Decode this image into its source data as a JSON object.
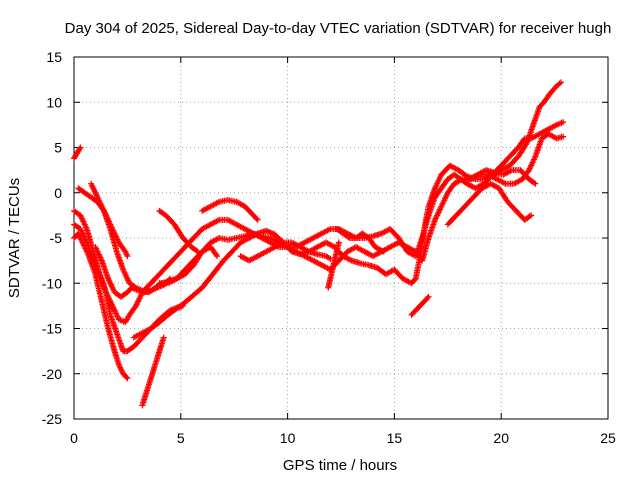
{
  "chart_data": {
    "type": "scatter",
    "title": "Day 304 of 2025, Sidereal Day-to-day VTEC variation (SDTVAR) for receiver hugh",
    "xlabel": "GPS time / hours",
    "ylabel": "SDTVAR / TECUs",
    "xlim": [
      0,
      25
    ],
    "ylim": [
      -25,
      15
    ],
    "xticks": [
      0,
      5,
      10,
      15,
      20,
      25
    ],
    "yticks": [
      -25,
      -20,
      -15,
      -10,
      -5,
      0,
      5,
      10,
      15
    ],
    "xtick_labels": [
      "0",
      "5",
      "10",
      "15",
      "20",
      "25"
    ],
    "ytick_labels": [
      "-25",
      "-20",
      "-15",
      "-10",
      "-5",
      "0",
      "5",
      "10",
      "15"
    ],
    "grid": true,
    "marker": "+",
    "color": "#ff0000",
    "series": [
      {
        "x": [
          0.0,
          0.1,
          0.2,
          0.3
        ],
        "y": [
          3.8,
          4.2,
          4.6,
          5.0
        ]
      },
      {
        "x": [
          0.0,
          0.3,
          0.6,
          0.9,
          1.2,
          1.5,
          1.7,
          2.0,
          2.3,
          2.5,
          2.8,
          3.2,
          3.6,
          4.0,
          4.5,
          5.0,
          5.5,
          6.0,
          6.5,
          7.0,
          7.4,
          7.8,
          8.2,
          8.6,
          9.0,
          9.4,
          9.8,
          10.2,
          10.6,
          11.0,
          11.4,
          11.8,
          12.2,
          12.6,
          13.0,
          13.4,
          13.8,
          14.2,
          14.6,
          15.0,
          15.4,
          15.8,
          16.0,
          16.2,
          16.4,
          16.6,
          16.9,
          17.2,
          17.6,
          18.0,
          18.4,
          18.8,
          19.2,
          19.6,
          20.0,
          20.4,
          20.8,
          21.2,
          21.5,
          21.8,
          22.0,
          22.3,
          22.6,
          22.8
        ],
        "y": [
          -3.5,
          -4.0,
          -5.5,
          -7.5,
          -9.0,
          -11.0,
          -13.5,
          -15.5,
          -17.5,
          -17.5,
          -17.0,
          -16.0,
          -15.0,
          -14.0,
          -13.0,
          -12.5,
          -11.5,
          -10.5,
          -9.0,
          -7.5,
          -6.5,
          -5.5,
          -5.0,
          -4.5,
          -4.2,
          -4.6,
          -5.5,
          -6.5,
          -6.8,
          -6.5,
          -6.0,
          -5.5,
          -6.0,
          -7.0,
          -7.5,
          -7.8,
          -8.0,
          -8.3,
          -9.0,
          -8.5,
          -9.5,
          -10.0,
          -9.5,
          -7.0,
          -4.0,
          -1.5,
          0.5,
          2.0,
          3.0,
          2.5,
          1.8,
          1.5,
          1.5,
          2.0,
          2.5,
          3.0,
          4.0,
          5.5,
          7.5,
          9.5,
          10.0,
          11.0,
          11.8,
          12.2
        ]
      },
      {
        "x": [
          0.0,
          0.2,
          0.4,
          0.7,
          1.0,
          1.3,
          1.6,
          1.9,
          2.1,
          2.3,
          2.5
        ],
        "y": [
          -5.0,
          -4.5,
          -5.5,
          -7.0,
          -9.0,
          -12.0,
          -15.0,
          -17.5,
          -19.0,
          -20.0,
          -20.5
        ]
      },
      {
        "x": [
          0.0,
          0.3,
          0.6,
          0.9,
          1.2,
          1.5,
          1.8,
          2.1,
          2.4,
          2.6,
          2.9,
          3.2,
          3.6,
          4.0,
          4.4,
          4.8,
          5.2,
          5.6,
          6.0,
          6.4,
          6.8,
          7.2,
          7.6,
          8.0,
          8.4,
          8.8,
          9.2,
          9.6,
          10.0,
          10.4,
          10.8,
          11.2,
          11.6,
          12.0,
          12.4,
          12.8,
          13.2,
          13.6,
          14.0,
          14.4,
          14.8,
          15.2,
          15.6,
          16.0,
          16.3,
          16.6,
          16.9,
          17.2,
          17.5,
          17.8,
          18.1,
          18.4,
          18.8,
          19.2,
          19.6,
          20.0,
          20.4,
          20.8,
          21.1,
          21.4,
          21.8,
          22.2,
          22.6,
          22.9
        ],
        "y": [
          -2.0,
          -2.5,
          -4.0,
          -6.5,
          -9.0,
          -11.0,
          -12.5,
          -14.0,
          -14.3,
          -13.5,
          -12.5,
          -11.0,
          -10.0,
          -9.0,
          -8.0,
          -7.0,
          -6.0,
          -5.0,
          -4.0,
          -3.5,
          -3.0,
          -3.0,
          -3.5,
          -4.0,
          -4.5,
          -4.8,
          -5.0,
          -5.5,
          -6.0,
          -6.0,
          -5.5,
          -5.0,
          -4.5,
          -4.0,
          -4.0,
          -4.5,
          -5.0,
          -5.0,
          -4.8,
          -4.5,
          -4.0,
          -5.0,
          -6.5,
          -7.0,
          -5.0,
          -2.5,
          -0.5,
          0.5,
          1.5,
          2.0,
          1.5,
          1.0,
          0.5,
          1.0,
          2.0,
          3.0,
          4.0,
          5.0,
          6.0,
          6.0,
          6.5,
          7.0,
          7.5,
          7.8
        ]
      },
      {
        "x": [
          0.2,
          0.5,
          0.8,
          1.1,
          1.4,
          1.7,
          2.0,
          2.3,
          2.6,
          2.9,
          3.2,
          3.5,
          3.8,
          4.1,
          4.4,
          4.8,
          5.2,
          5.6,
          6.0,
          6.4,
          6.8,
          7.2,
          7.6,
          8.0,
          8.4,
          8.8,
          9.2,
          9.6,
          10.0,
          10.4,
          10.8,
          11.2,
          11.6,
          12.0,
          12.4,
          12.8,
          13.2,
          13.6,
          14.0,
          14.4,
          14.8,
          15.2,
          15.6,
          16.0,
          16.3,
          16.6,
          16.9,
          17.2,
          17.5,
          17.8,
          18.2,
          18.6,
          19.0,
          19.4,
          19.8,
          20.2,
          20.6,
          21.0,
          21.3,
          21.6,
          21.9,
          22.2,
          22.6,
          22.9
        ],
        "y": [
          0.5,
          0.0,
          -0.5,
          -1.0,
          -2.0,
          -4.0,
          -6.5,
          -8.5,
          -10.0,
          -10.5,
          -10.8,
          -11.0,
          -10.5,
          -10.0,
          -9.8,
          -9.5,
          -8.5,
          -7.5,
          -6.5,
          -5.5,
          -5.0,
          -5.2,
          -5.0,
          -4.8,
          -4.5,
          -5.0,
          -5.5,
          -6.0,
          -6.0,
          -6.5,
          -7.0,
          -7.5,
          -8.0,
          -8.5,
          -7.5,
          -6.5,
          -6.0,
          -6.5,
          -7.0,
          -6.5,
          -6.0,
          -5.5,
          -6.0,
          -6.5,
          -7.5,
          -5.0,
          -3.0,
          -1.5,
          0.0,
          1.0,
          1.5,
          1.5,
          2.0,
          2.0,
          1.5,
          1.0,
          1.0,
          1.5,
          2.5,
          4.0,
          6.0,
          6.5,
          6.0,
          6.2
        ]
      },
      {
        "x": [
          1.0,
          1.3,
          1.6,
          1.9,
          2.2,
          2.5,
          2.7,
          3.0,
          3.3,
          3.6,
          3.9,
          4.2,
          4.5
        ],
        "y": [
          -6.0,
          -7.5,
          -9.5,
          -11.0,
          -11.5,
          -11.0,
          -10.5,
          -10.8,
          -11.0,
          -10.8,
          -10.5,
          -10.2,
          -9.5
        ]
      },
      {
        "x": [
          0.8,
          1.0,
          1.2,
          1.5,
          1.8,
          2.1,
          2.4,
          2.5
        ],
        "y": [
          1.0,
          0.0,
          -1.0,
          -2.5,
          -4.0,
          -5.5,
          -6.5,
          -7.0
        ]
      },
      {
        "x": [
          3.2,
          3.4,
          3.6,
          3.8,
          4.0,
          4.2
        ],
        "y": [
          -23.5,
          -22.0,
          -20.5,
          -19.0,
          -17.5,
          -16.0
        ]
      },
      {
        "x": [
          2.8,
          3.2,
          3.6,
          4.0,
          4.4,
          4.8,
          5.1
        ],
        "y": [
          -16.0,
          -15.5,
          -15.0,
          -14.3,
          -13.5,
          -12.8,
          -12.5
        ]
      },
      {
        "x": [
          4.0,
          4.4,
          4.8,
          5.2,
          5.6,
          6.0,
          6.4,
          6.7
        ],
        "y": [
          -10.0,
          -10.0,
          -9.5,
          -9.0,
          -8.0,
          -6.5,
          -6.0,
          -7.0
        ]
      },
      {
        "x": [
          4.0,
          4.3,
          4.7,
          5.1,
          5.5,
          5.8
        ],
        "y": [
          -2.0,
          -2.5,
          -3.5,
          -5.0,
          -6.0,
          -6.5
        ]
      },
      {
        "x": [
          6.0,
          6.4,
          6.8,
          7.2,
          7.6,
          8.0,
          8.4,
          8.6
        ],
        "y": [
          -2.0,
          -1.5,
          -1.0,
          -0.8,
          -1.0,
          -1.5,
          -2.5,
          -3.0
        ]
      },
      {
        "x": [
          7.8,
          8.2,
          8.6,
          9.0,
          9.4,
          9.8,
          10.2,
          10.6,
          11.0,
          11.4,
          11.8,
          12.0
        ],
        "y": [
          -7.0,
          -7.5,
          -7.0,
          -6.5,
          -6.0,
          -5.5,
          -5.5,
          -6.0,
          -6.5,
          -6.8,
          -7.0,
          -7.3
        ]
      },
      {
        "x": [
          11.9,
          12.0,
          12.1,
          12.2,
          12.3,
          12.4
        ],
        "y": [
          -10.5,
          -9.5,
          -8.5,
          -7.5,
          -6.5,
          -5.5
        ]
      },
      {
        "x": [
          12.3,
          12.6,
          12.9,
          13.2,
          13.5,
          13.8,
          14.1,
          14.5
        ],
        "y": [
          -4.0,
          -4.5,
          -5.0,
          -5.0,
          -4.5,
          -5.0,
          -6.0,
          -6.5
        ]
      },
      {
        "x": [
          15.8,
          16.0,
          16.2,
          16.4,
          16.6
        ],
        "y": [
          -13.5,
          -13.0,
          -12.5,
          -12.0,
          -11.5
        ]
      },
      {
        "x": [
          17.5,
          17.9,
          18.3,
          18.7,
          19.1,
          19.5,
          19.9,
          20.3,
          20.7,
          21.1,
          21.4
        ],
        "y": [
          -3.5,
          -2.5,
          -1.5,
          -0.5,
          0.5,
          1.0,
          0.5,
          -1.0,
          -2.0,
          -3.0,
          -2.5
        ]
      },
      {
        "x": [
          18.5,
          18.9,
          19.3,
          19.7,
          20.1,
          20.5,
          20.9,
          21.3,
          21.6
        ],
        "y": [
          1.5,
          2.0,
          2.5,
          2.2,
          2.0,
          2.5,
          2.5,
          1.5,
          1.0
        ]
      }
    ]
  }
}
